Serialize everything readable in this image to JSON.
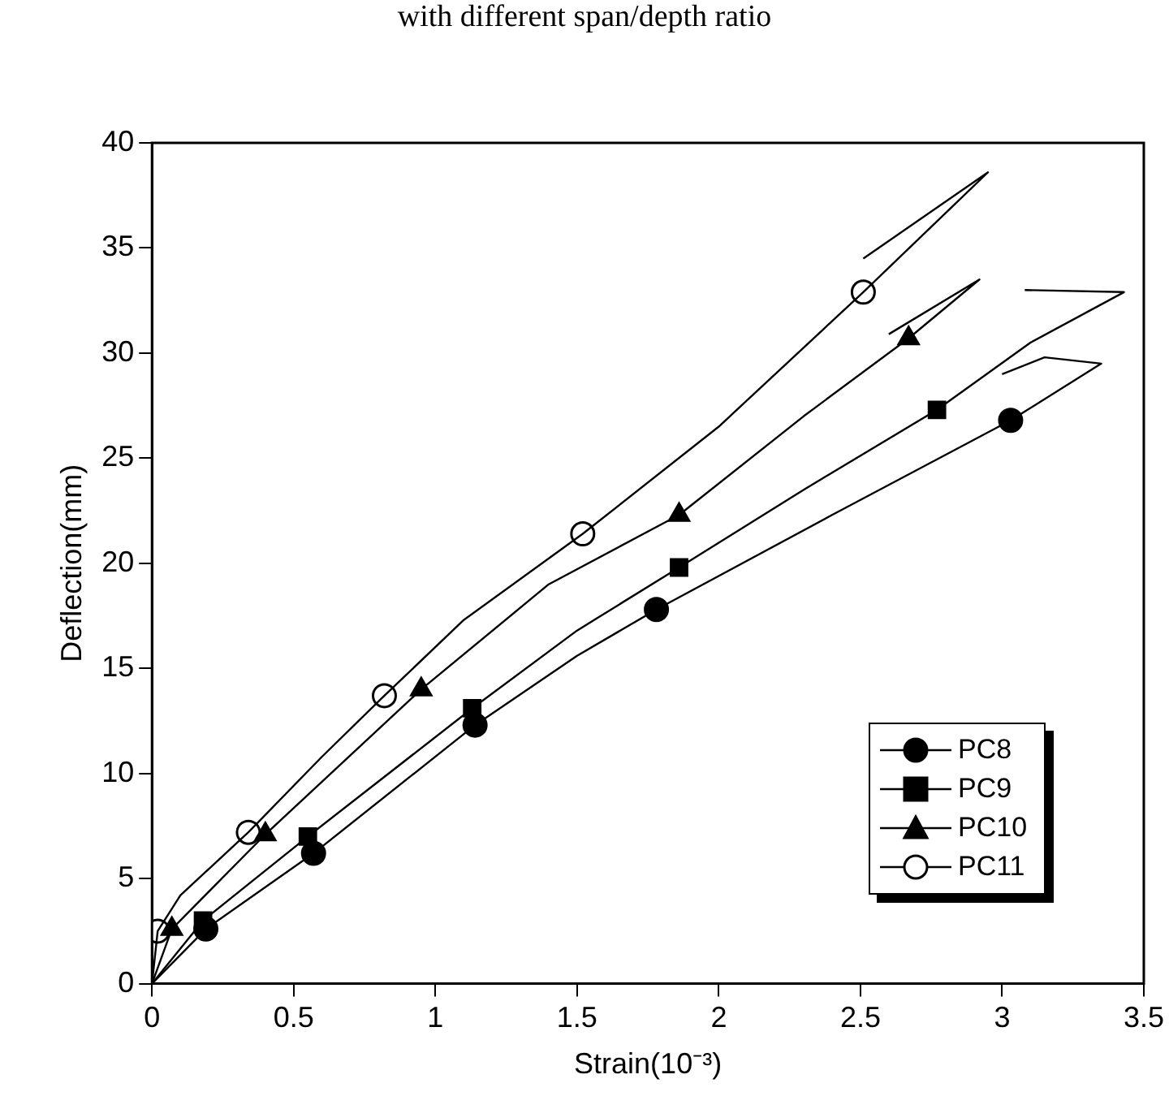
{
  "chart_data": {
    "type": "line",
    "title": "with different span/depth ratio",
    "xlabel": "Strain(10⁻³)",
    "ylabel": "Deflection(mm)",
    "xlim": [
      0,
      3.5
    ],
    "xticks": [
      0,
      0.5,
      1,
      1.5,
      2,
      2.5,
      3,
      3.5
    ],
    "ylim": [
      0,
      40
    ],
    "yticks": [
      0,
      5,
      10,
      15,
      20,
      25,
      30,
      35,
      40
    ],
    "grid": false,
    "legend": "bottom right",
    "series": [
      {
        "color": "#000000",
        "marker": "none",
        "x": [
          0,
          0.19,
          0.57,
          1.14,
          1.5,
          1.78,
          2.4,
          3.03,
          3.35,
          3.15,
          3.0
        ],
        "values": [
          0,
          2.6,
          6.2,
          12.3,
          15.6,
          17.8,
          22.3,
          26.8,
          29.5,
          29.8,
          29.0
        ]
      },
      {
        "color": "#000000",
        "marker": "none",
        "x": [
          0,
          0.18,
          0.55,
          1.13,
          1.5,
          1.86,
          2.3,
          2.77,
          3.1,
          3.43,
          3.08
        ],
        "values": [
          0,
          3.0,
          7.0,
          13.1,
          16.8,
          19.8,
          23.5,
          27.3,
          30.5,
          32.9,
          33.0
        ]
      },
      {
        "color": "#000000",
        "marker": "none",
        "x": [
          0,
          0.07,
          0.4,
          0.95,
          1.4,
          1.86,
          2.3,
          2.67,
          2.92,
          2.6
        ],
        "values": [
          0,
          2.6,
          7.1,
          14.0,
          19.0,
          22.3,
          27.0,
          30.7,
          33.5,
          30.9
        ]
      },
      {
        "color": "#000000",
        "marker": "none",
        "x": [
          0,
          0.02,
          0.1,
          0.34,
          0.6,
          0.82,
          1.1,
          1.52,
          2.0,
          2.51,
          2.95,
          2.51
        ],
        "values": [
          0,
          2.5,
          4.2,
          7.2,
          10.8,
          13.7,
          17.3,
          21.4,
          26.5,
          32.9,
          38.6,
          34.5
        ]
      },
      {
        "type": "scatter",
        "name": "PC8",
        "color": "#000000",
        "marker": "circle",
        "x": [
          0.19,
          0.57,
          1.14,
          1.78,
          3.03
        ],
        "values": [
          2.6,
          6.2,
          12.3,
          17.8,
          26.8
        ]
      },
      {
        "type": "scatter",
        "name": "PC9",
        "color": "#000000",
        "marker": "square",
        "x": [
          0.18,
          0.55,
          1.13,
          1.86,
          2.77
        ],
        "values": [
          3.0,
          7.0,
          13.1,
          19.8,
          27.3
        ]
      },
      {
        "type": "scatter",
        "name": "PC10",
        "color": "#000000",
        "marker": "triangle",
        "x": [
          0.07,
          0.4,
          0.95,
          1.86,
          2.67
        ],
        "values": [
          2.6,
          7.1,
          14.0,
          22.3,
          30.7
        ]
      },
      {
        "type": "scatter",
        "name": "PC11",
        "color": "#ffffff",
        "marker": "circle",
        "x": [
          0.02,
          0.34,
          0.82,
          1.52,
          2.51
        ],
        "values": [
          2.5,
          7.2,
          13.7,
          21.4,
          32.9
        ]
      }
    ]
  }
}
